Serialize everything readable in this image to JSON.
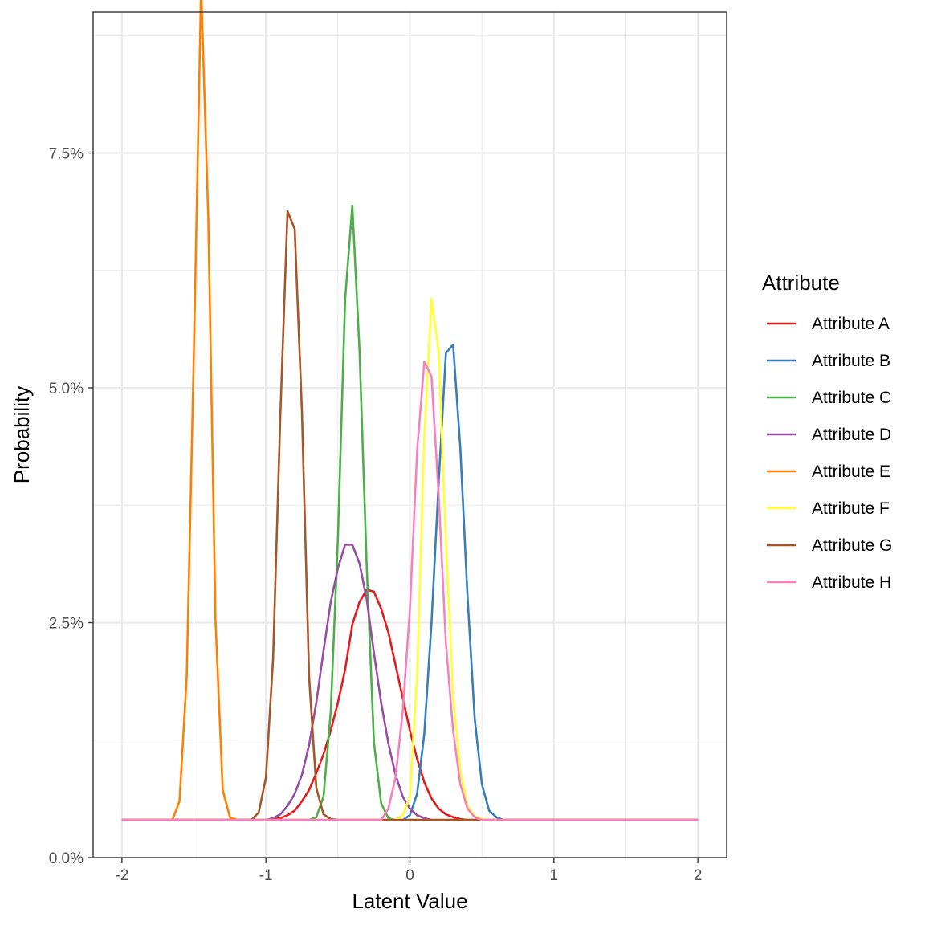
{
  "chart_data": {
    "type": "line",
    "xlabel": "Latent Value",
    "ylabel": "Probability",
    "xlim": [
      -2.2,
      2.2
    ],
    "ylim": [
      0,
      0.09
    ],
    "x_ticks": [
      -2,
      -1,
      0,
      1,
      2
    ],
    "x_tick_labels": [
      "-2",
      "-1",
      "0",
      "1",
      "2"
    ],
    "y_ticks": [
      0,
      0.025,
      0.05,
      0.075
    ],
    "y_tick_labels": [
      "0.0%",
      "2.5%",
      "5.0%",
      "7.5%"
    ],
    "grid": true,
    "legend": {
      "title": "Attribute",
      "position": "right"
    },
    "baseline": 0.004,
    "series": [
      {
        "name": "Attribute A",
        "color": "#E41A1C",
        "points": [
          [
            -2,
            0.004
          ],
          [
            -1,
            0.004
          ],
          [
            -0.9,
            0.0042
          ],
          [
            -0.85,
            0.0045
          ],
          [
            -0.8,
            0.005
          ],
          [
            -0.75,
            0.006
          ],
          [
            -0.7,
            0.0072
          ],
          [
            -0.65,
            0.009
          ],
          [
            -0.6,
            0.011
          ],
          [
            -0.55,
            0.0135
          ],
          [
            -0.5,
            0.0165
          ],
          [
            -0.45,
            0.02
          ],
          [
            -0.4,
            0.0248
          ],
          [
            -0.35,
            0.0272
          ],
          [
            -0.3,
            0.0285
          ],
          [
            -0.25,
            0.0283
          ],
          [
            -0.2,
            0.0265
          ],
          [
            -0.15,
            0.024
          ],
          [
            -0.1,
            0.0205
          ],
          [
            -0.05,
            0.017
          ],
          [
            0,
            0.0135
          ],
          [
            0.05,
            0.0105
          ],
          [
            0.1,
            0.008
          ],
          [
            0.15,
            0.0063
          ],
          [
            0.2,
            0.0052
          ],
          [
            0.25,
            0.0046
          ],
          [
            0.3,
            0.0043
          ],
          [
            0.35,
            0.0041
          ],
          [
            0.4,
            0.004
          ],
          [
            2,
            0.004
          ]
        ]
      },
      {
        "name": "Attribute B",
        "color": "#377EB8",
        "points": [
          [
            -2,
            0.004
          ],
          [
            -0.05,
            0.004
          ],
          [
            0,
            0.0045
          ],
          [
            0.05,
            0.0068
          ],
          [
            0.1,
            0.0132
          ],
          [
            0.15,
            0.025
          ],
          [
            0.2,
            0.04
          ],
          [
            0.25,
            0.0537
          ],
          [
            0.3,
            0.0546
          ],
          [
            0.35,
            0.0436
          ],
          [
            0.4,
            0.0278
          ],
          [
            0.45,
            0.0148
          ],
          [
            0.5,
            0.0078
          ],
          [
            0.55,
            0.005
          ],
          [
            0.6,
            0.0043
          ],
          [
            0.65,
            0.004
          ],
          [
            2,
            0.004
          ]
        ]
      },
      {
        "name": "Attribute C",
        "color": "#4DAF4A",
        "points": [
          [
            -2,
            0.004
          ],
          [
            -0.7,
            0.004
          ],
          [
            -0.65,
            0.0043
          ],
          [
            -0.6,
            0.0065
          ],
          [
            -0.55,
            0.0155
          ],
          [
            -0.5,
            0.034
          ],
          [
            -0.45,
            0.0594
          ],
          [
            -0.4,
            0.0694
          ],
          [
            -0.35,
            0.054
          ],
          [
            -0.3,
            0.031
          ],
          [
            -0.25,
            0.0123
          ],
          [
            -0.2,
            0.0058
          ],
          [
            -0.15,
            0.0042
          ],
          [
            -0.1,
            0.004
          ],
          [
            2,
            0.004
          ]
        ]
      },
      {
        "name": "Attribute D",
        "color": "#984EA3",
        "points": [
          [
            -2,
            0.004
          ],
          [
            -1,
            0.004
          ],
          [
            -0.95,
            0.0042
          ],
          [
            -0.9,
            0.0046
          ],
          [
            -0.85,
            0.0055
          ],
          [
            -0.8,
            0.0068
          ],
          [
            -0.75,
            0.0088
          ],
          [
            -0.7,
            0.012
          ],
          [
            -0.65,
            0.0165
          ],
          [
            -0.6,
            0.022
          ],
          [
            -0.55,
            0.0272
          ],
          [
            -0.5,
            0.0308
          ],
          [
            -0.45,
            0.0333
          ],
          [
            -0.4,
            0.0333
          ],
          [
            -0.35,
            0.0313
          ],
          [
            -0.3,
            0.0275
          ],
          [
            -0.25,
            0.0218
          ],
          [
            -0.2,
            0.0165
          ],
          [
            -0.15,
            0.0122
          ],
          [
            -0.1,
            0.0088
          ],
          [
            -0.05,
            0.0065
          ],
          [
            0,
            0.0052
          ],
          [
            0.05,
            0.0045
          ],
          [
            0.1,
            0.0042
          ],
          [
            0.15,
            0.004
          ],
          [
            2,
            0.004
          ]
        ]
      },
      {
        "name": "Attribute E",
        "color": "#FF7F00",
        "points": [
          [
            -2,
            0.004
          ],
          [
            -1.65,
            0.004
          ],
          [
            -1.6,
            0.006
          ],
          [
            -1.55,
            0.0193
          ],
          [
            -1.5,
            0.054
          ],
          [
            -1.45,
            0.0927
          ],
          [
            -1.4,
            0.068
          ],
          [
            -1.35,
            0.0252
          ],
          [
            -1.3,
            0.0072
          ],
          [
            -1.25,
            0.0043
          ],
          [
            -1.2,
            0.004
          ],
          [
            2,
            0.004
          ]
        ]
      },
      {
        "name": "Attribute F",
        "color": "#FFFF33",
        "points": [
          [
            -2,
            0.004
          ],
          [
            -0.1,
            0.004
          ],
          [
            -0.05,
            0.0045
          ],
          [
            0,
            0.0065
          ],
          [
            0.05,
            0.0195
          ],
          [
            0.1,
            0.0448
          ],
          [
            0.15,
            0.0595
          ],
          [
            0.2,
            0.0538
          ],
          [
            0.25,
            0.0335
          ],
          [
            0.3,
            0.0172
          ],
          [
            0.35,
            0.0092
          ],
          [
            0.4,
            0.0055
          ],
          [
            0.45,
            0.0044
          ],
          [
            0.5,
            0.0041
          ],
          [
            0.55,
            0.004
          ],
          [
            2,
            0.004
          ]
        ]
      },
      {
        "name": "Attribute G",
        "color": "#A65628",
        "points": [
          [
            -2,
            0.004
          ],
          [
            -1.1,
            0.004
          ],
          [
            -1.05,
            0.0048
          ],
          [
            -1,
            0.0085
          ],
          [
            -0.95,
            0.0212
          ],
          [
            -0.9,
            0.047
          ],
          [
            -0.85,
            0.0688
          ],
          [
            -0.8,
            0.0669
          ],
          [
            -0.75,
            0.0475
          ],
          [
            -0.7,
            0.0192
          ],
          [
            -0.65,
            0.0074
          ],
          [
            -0.6,
            0.0046
          ],
          [
            -0.55,
            0.0041
          ],
          [
            -0.5,
            0.004
          ],
          [
            2,
            0.004
          ]
        ]
      },
      {
        "name": "Attribute H",
        "color": "#F781BF",
        "points": [
          [
            -2,
            0.004
          ],
          [
            -0.2,
            0.004
          ],
          [
            -0.15,
            0.0052
          ],
          [
            -0.1,
            0.0085
          ],
          [
            -0.05,
            0.0155
          ],
          [
            0,
            0.0265
          ],
          [
            0.05,
            0.0433
          ],
          [
            0.1,
            0.0528
          ],
          [
            0.15,
            0.0512
          ],
          [
            0.2,
            0.0385
          ],
          [
            0.25,
            0.0228
          ],
          [
            0.3,
            0.0135
          ],
          [
            0.35,
            0.0078
          ],
          [
            0.4,
            0.0052
          ],
          [
            0.45,
            0.0043
          ],
          [
            0.5,
            0.004
          ],
          [
            2,
            0.004
          ]
        ]
      }
    ]
  }
}
